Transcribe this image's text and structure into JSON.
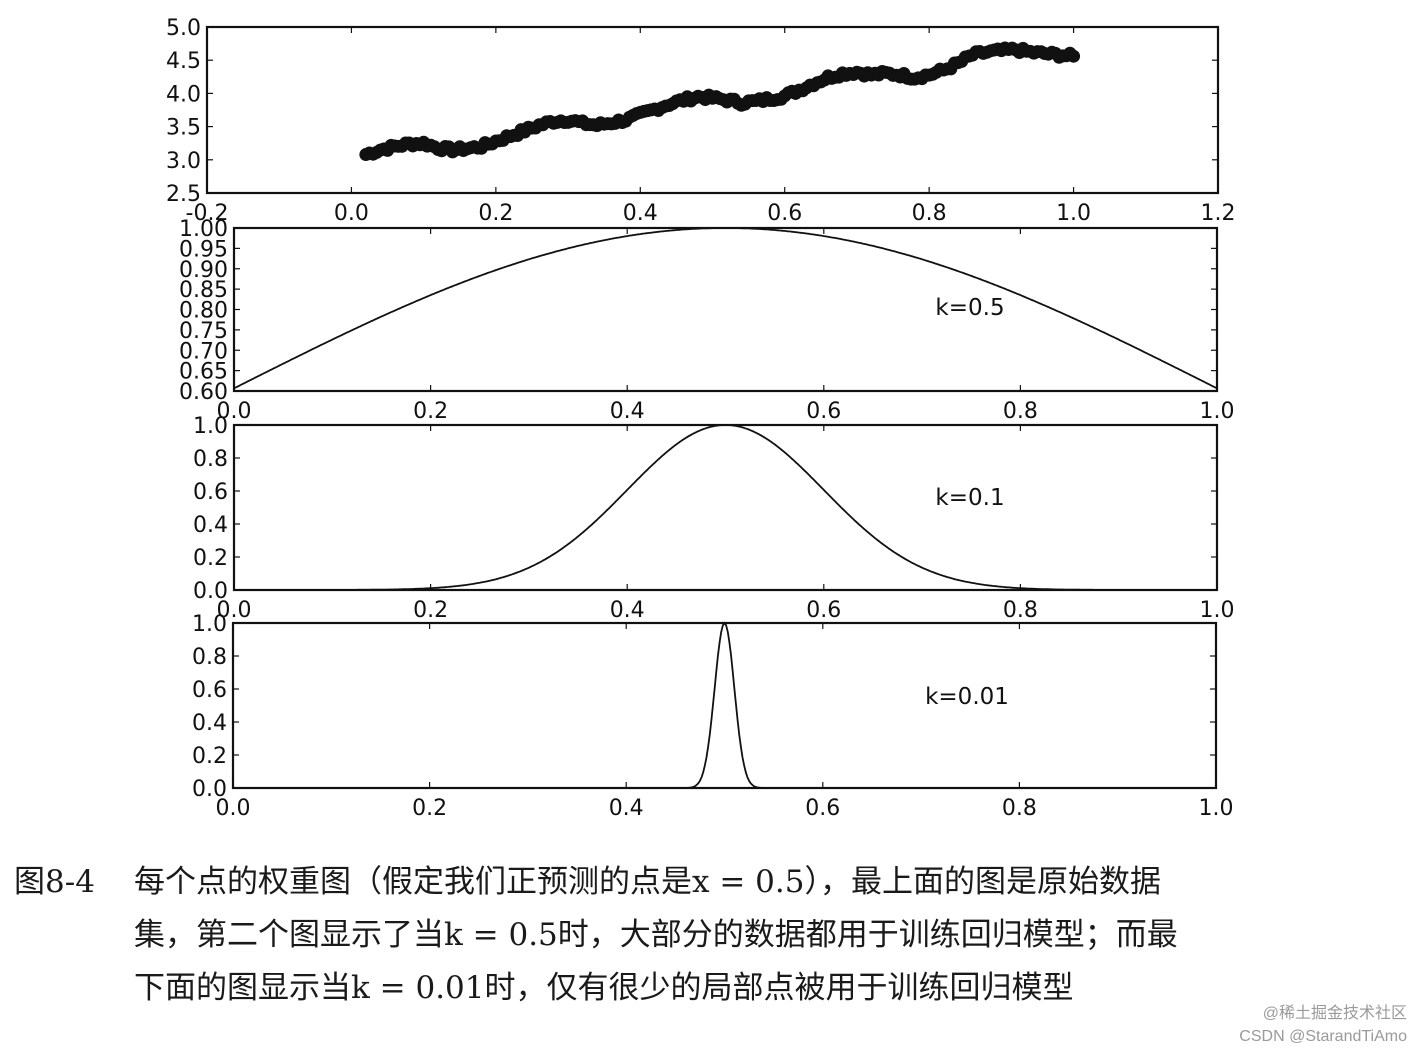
{
  "figure": {
    "label": "图8-4",
    "caption_lines": [
      "每个点的权重图（假定我们正预测的点是x = 0.5），最上面的图是原始数据",
      "集，第二个图显示了当k = 0.5时，大部分的数据都用于训练回归模型；而最",
      "下面的图显示当k = 0.01时，仅有很少的局部点被用于训练回归模型"
    ]
  },
  "watermark": {
    "line1": "@稀土掘金技术社区",
    "line2": "CSDN @StarandTiAmo"
  },
  "colors": {
    "ink": "#111111",
    "background": "#ffffff",
    "watermark": "#9a9a9a"
  },
  "chart_data": [
    {
      "type": "scatter",
      "title": "",
      "xlabel": "",
      "ylabel": "",
      "xlim": [
        -0.2,
        1.2
      ],
      "ylim": [
        2.5,
        5.0
      ],
      "xticks": [
        "-0.2",
        "0.0",
        "0.2",
        "0.4",
        "0.6",
        "0.8",
        "1.0",
        "1.2"
      ],
      "yticks": [
        "2.5",
        "3.0",
        "3.5",
        "4.0",
        "4.5",
        "5.0"
      ],
      "grid": false,
      "marker": "filled circle",
      "x": [
        0.02,
        0.04,
        0.06,
        0.08,
        0.1,
        0.12,
        0.14,
        0.16,
        0.18,
        0.2,
        0.22,
        0.24,
        0.26,
        0.28,
        0.3,
        0.32,
        0.34,
        0.36,
        0.38,
        0.4,
        0.42,
        0.44,
        0.46,
        0.48,
        0.5,
        0.52,
        0.54,
        0.56,
        0.58,
        0.6,
        0.62,
        0.64,
        0.66,
        0.68,
        0.7,
        0.72,
        0.74,
        0.76,
        0.78,
        0.8,
        0.82,
        0.84,
        0.86,
        0.88,
        0.9,
        0.92,
        0.94,
        0.96,
        0.98,
        1.0
      ],
      "y": [
        3.08,
        3.15,
        3.2,
        3.24,
        3.25,
        3.18,
        3.15,
        3.17,
        3.2,
        3.28,
        3.36,
        3.44,
        3.52,
        3.58,
        3.6,
        3.55,
        3.52,
        3.56,
        3.6,
        3.68,
        3.76,
        3.84,
        3.9,
        3.95,
        3.93,
        3.9,
        3.86,
        3.88,
        3.92,
        3.96,
        4.05,
        4.15,
        4.24,
        4.3,
        4.32,
        4.28,
        4.3,
        4.28,
        4.24,
        4.28,
        4.35,
        4.45,
        4.58,
        4.62,
        4.64,
        4.66,
        4.62,
        4.6,
        4.58,
        4.56
      ]
    },
    {
      "type": "line",
      "annotation": "k=0.5",
      "k": 0.5,
      "xlim": [
        0.0,
        1.0
      ],
      "ylim": [
        0.6,
        1.0
      ],
      "xticks": [
        "0.0",
        "0.2",
        "0.4",
        "0.6",
        "0.8",
        "1.0"
      ],
      "yticks": [
        "0.60",
        "0.65",
        "0.70",
        "0.75",
        "0.80",
        "0.85",
        "0.90",
        "0.95",
        "1.00"
      ],
      "grid": false,
      "x": [
        0.0,
        0.1,
        0.2,
        0.3,
        0.4,
        0.5,
        0.6,
        0.7,
        0.8,
        0.9,
        1.0
      ],
      "y": [
        0.607,
        0.726,
        0.835,
        0.923,
        0.98,
        1.0,
        0.98,
        0.923,
        0.835,
        0.726,
        0.607
      ]
    },
    {
      "type": "line",
      "annotation": "k=0.1",
      "k": 0.1,
      "xlim": [
        0.0,
        1.0
      ],
      "ylim": [
        0.0,
        1.0
      ],
      "xticks": [
        "0.0",
        "0.2",
        "0.4",
        "0.6",
        "0.8",
        "1.0"
      ],
      "yticks": [
        "0.0",
        "0.2",
        "0.4",
        "0.6",
        "0.8",
        "1.0"
      ],
      "grid": false,
      "x": [
        0.0,
        0.1,
        0.2,
        0.3,
        0.35,
        0.4,
        0.45,
        0.5,
        0.55,
        0.6,
        0.65,
        0.7,
        0.8,
        0.9,
        1.0
      ],
      "y": [
        0.0,
        0.0,
        0.011,
        0.135,
        0.325,
        0.607,
        0.882,
        1.0,
        0.882,
        0.607,
        0.325,
        0.135,
        0.011,
        0.0,
        0.0
      ]
    },
    {
      "type": "line",
      "annotation": "k=0.01",
      "k": 0.01,
      "xlim": [
        0.0,
        1.0
      ],
      "ylim": [
        0.0,
        1.0
      ],
      "xticks": [
        "0.0",
        "0.2",
        "0.4",
        "0.6",
        "0.8",
        "1.0"
      ],
      "yticks": [
        "0.0",
        "0.2",
        "0.4",
        "0.6",
        "0.8",
        "1.0"
      ],
      "grid": false,
      "x": [
        0.0,
        0.47,
        0.48,
        0.49,
        0.5,
        0.51,
        0.52,
        0.53,
        1.0
      ],
      "y": [
        0.0,
        0.011,
        0.135,
        0.607,
        1.0,
        0.607,
        0.135,
        0.011,
        0.0
      ]
    }
  ]
}
